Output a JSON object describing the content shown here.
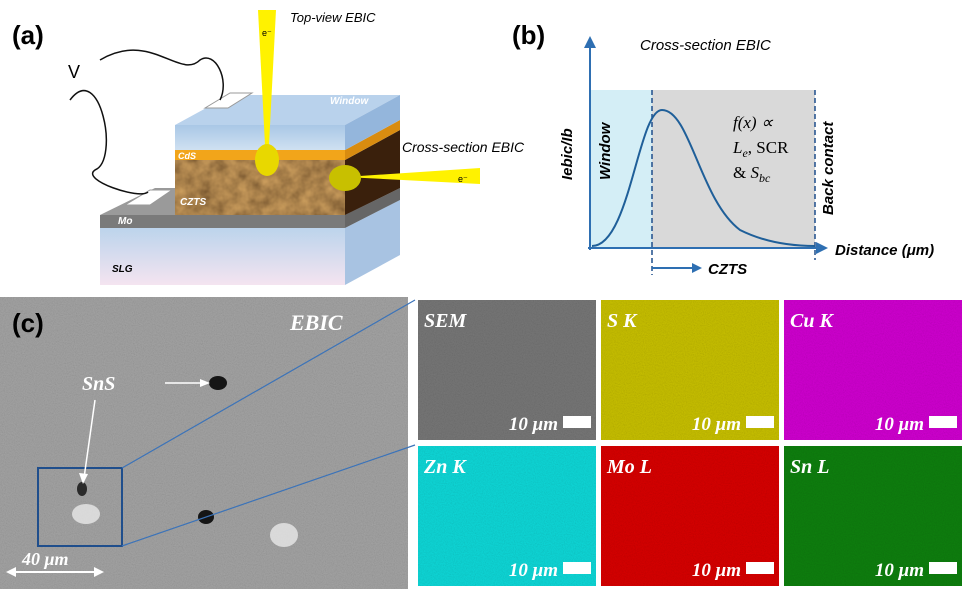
{
  "panel_a": {
    "label": "(a)",
    "top_view_title": "Top-view EBIC",
    "voltage": "V",
    "beam_top": "e⁻",
    "beam_side": "e⁻",
    "cross_section_title": "Cross-section EBIC",
    "layers": {
      "window": "Window",
      "cds": "CdS",
      "czts": "CZTS",
      "mo": "Mo",
      "slg": "SLG"
    }
  },
  "panel_b": {
    "label": "(b)",
    "title": "Cross-section EBIC",
    "y_label": "Iebic/Ib",
    "x_label": "Distance (μm)",
    "window": "Window",
    "back_contact": "Back contact",
    "czts": "CZTS",
    "formula": {
      "line1": "f(x) ∝",
      "line2": {
        "symbol": "L",
        "sub": "e",
        "text": ", SCR"
      },
      "line3": {
        "prefix": "& ",
        "symbol": "S",
        "sub": "bc"
      }
    }
  },
  "panel_c": {
    "label": "(c)",
    "ebic_title": "EBIC",
    "sns": "SnS",
    "scale": "40 μm",
    "tiles": [
      {
        "title": "SEM",
        "scale": "10 μm"
      },
      {
        "title": "S K",
        "scale": "10 μm"
      },
      {
        "title": "Cu K",
        "scale": "10 μm"
      },
      {
        "title": "Zn K",
        "scale": "10 μm"
      },
      {
        "title": "Mo L",
        "scale": "10 μm"
      },
      {
        "title": "Sn L",
        "scale": "10 μm"
      }
    ]
  }
}
